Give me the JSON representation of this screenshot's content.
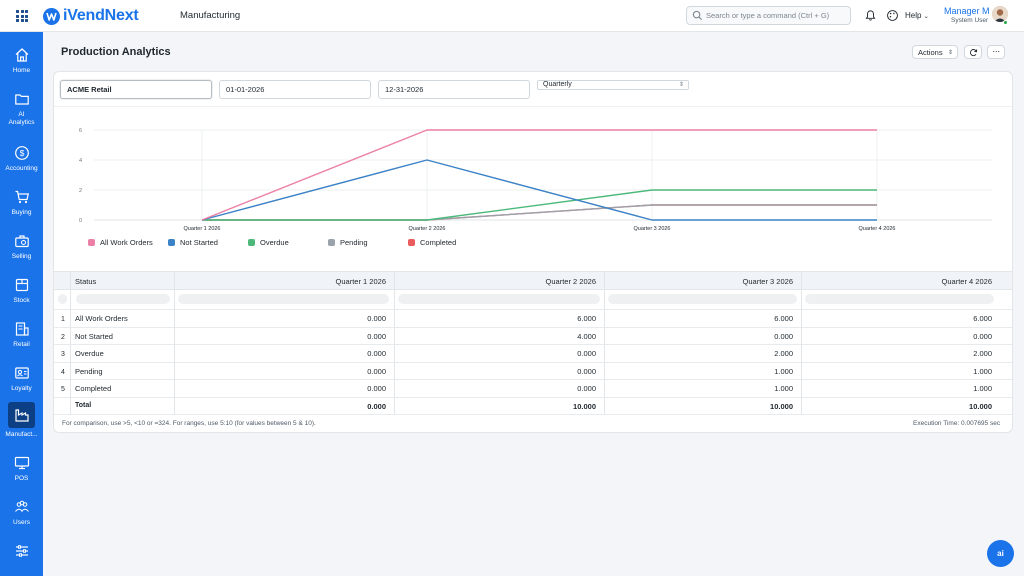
{
  "header": {
    "brand": "iVendNext",
    "module": "Manufacturing",
    "search_placeholder": "Search or type a command (Ctrl + G)",
    "help_label": "Help",
    "user_name": "Manager M",
    "user_role": "System User"
  },
  "sidebar": {
    "items": [
      {
        "label": "Home",
        "icon": "home-icon"
      },
      {
        "label": "AI\nAnalytics",
        "icon": "folder-icon"
      },
      {
        "label": "Accounting",
        "icon": "dollar-icon"
      },
      {
        "label": "Buying",
        "icon": "cart-icon"
      },
      {
        "label": "Selling",
        "icon": "briefcase-icon"
      },
      {
        "label": "Stock",
        "icon": "box-icon"
      },
      {
        "label": "Retail",
        "icon": "store-icon"
      },
      {
        "label": "Loyalty",
        "icon": "id-card-icon"
      },
      {
        "label": "Manufact...",
        "icon": "factory-icon",
        "active": true
      },
      {
        "label": "POS",
        "icon": "monitor-icon"
      },
      {
        "label": "Users",
        "icon": "users-icon"
      },
      {
        "label": "",
        "icon": "sliders-icon"
      }
    ]
  },
  "page": {
    "title": "Production Analytics",
    "actions_label": "Actions",
    "more_label": "···"
  },
  "filters": {
    "company": "ACME Retail",
    "from_date": "01-01-2026",
    "to_date": "12-31-2026",
    "range": "Quarterly"
  },
  "chart_data": {
    "type": "line",
    "categories": [
      "Quarter 1 2026",
      "Quarter 2 2026",
      "Quarter 3 2026",
      "Quarter 4 2026"
    ],
    "y_ticks": [
      "0",
      "2",
      "4",
      "6"
    ],
    "ylim": [
      0,
      6
    ],
    "grid": true,
    "legend_position": "bottom-left",
    "series": [
      {
        "name": "All Work Orders",
        "color": "#ec7fa6",
        "values": [
          0,
          6,
          6,
          6
        ]
      },
      {
        "name": "Not Started",
        "color": "#3b82c6",
        "values": [
          0,
          4,
          0,
          0
        ]
      },
      {
        "name": "Overdue",
        "color": "#4cb97a",
        "values": [
          0,
          0,
          2,
          2
        ]
      },
      {
        "name": "Pending",
        "color": "#9aa3ab",
        "values": [
          0,
          0,
          1,
          1
        ]
      },
      {
        "name": "Completed",
        "color": "#ea5c5c",
        "values": [
          0,
          0,
          1,
          1
        ]
      }
    ]
  },
  "table": {
    "columns": [
      "Status",
      "Quarter 1 2026",
      "Quarter 2 2026",
      "Quarter 3 2026",
      "Quarter 4 2026"
    ],
    "rows": [
      {
        "index": "1",
        "status": "All Work Orders",
        "values": [
          "0.000",
          "6.000",
          "6.000",
          "6.000"
        ]
      },
      {
        "index": "2",
        "status": "Not Started",
        "values": [
          "0.000",
          "4.000",
          "0.000",
          "0.000"
        ]
      },
      {
        "index": "3",
        "status": "Overdue",
        "values": [
          "0.000",
          "0.000",
          "2.000",
          "2.000"
        ]
      },
      {
        "index": "4",
        "status": "Pending",
        "values": [
          "0.000",
          "0.000",
          "1.000",
          "1.000"
        ]
      },
      {
        "index": "5",
        "status": "Completed",
        "values": [
          "0.000",
          "0.000",
          "1.000",
          "1.000"
        ]
      }
    ],
    "total": {
      "label": "Total",
      "values": [
        "0.000",
        "10.000",
        "10.000",
        "10.000"
      ]
    }
  },
  "footer": {
    "note": "For comparison, use >5, <10 or =324. For ranges, use 5:10 (for values between 5 & 10).",
    "execution_time": "Execution Time: 0.007695 sec"
  },
  "ai_button_label": "ai"
}
